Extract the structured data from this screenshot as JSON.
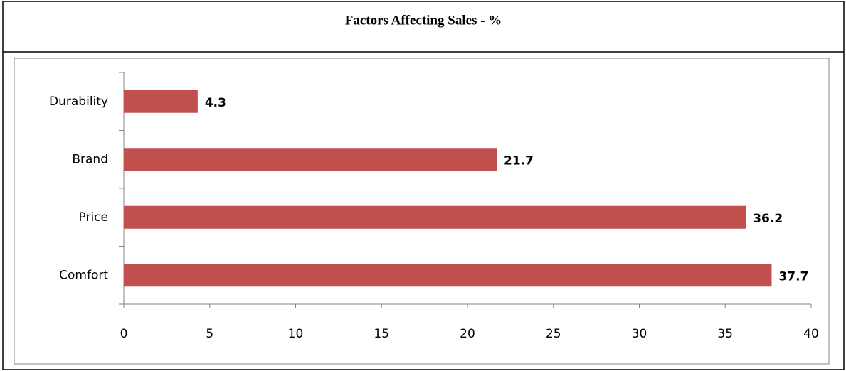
{
  "chart_data": {
    "type": "bar",
    "orientation": "horizontal",
    "title": "Factors Affecting Sales - %",
    "categories": [
      "Durability",
      "Brand",
      "Price",
      "Comfort"
    ],
    "values": [
      4.3,
      21.7,
      36.2,
      37.7
    ],
    "color": "#c0504d",
    "xlim": [
      0,
      40
    ],
    "xticks": [
      0,
      5,
      10,
      15,
      20,
      25,
      30,
      35,
      40
    ],
    "grid": false
  }
}
